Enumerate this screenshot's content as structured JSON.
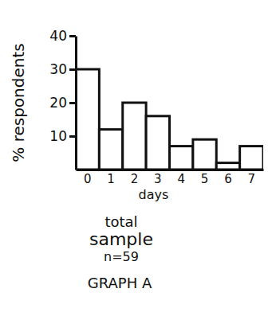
{
  "chart_data": {
    "type": "bar",
    "title": "GRAPH A",
    "x_label": "days",
    "y_label": "% respondents",
    "annotations": [
      "total",
      "sample",
      "n=59"
    ],
    "categories": [
      "0",
      "1",
      "2",
      "3",
      "4",
      "5",
      "6",
      "7"
    ],
    "values": [
      30,
      12,
      20,
      16,
      7,
      9,
      2,
      7
    ],
    "color": "#ffffff",
    "ylim": [
      0,
      40
    ],
    "yticks": [
      10,
      20,
      30,
      40
    ],
    "grid": false
  }
}
